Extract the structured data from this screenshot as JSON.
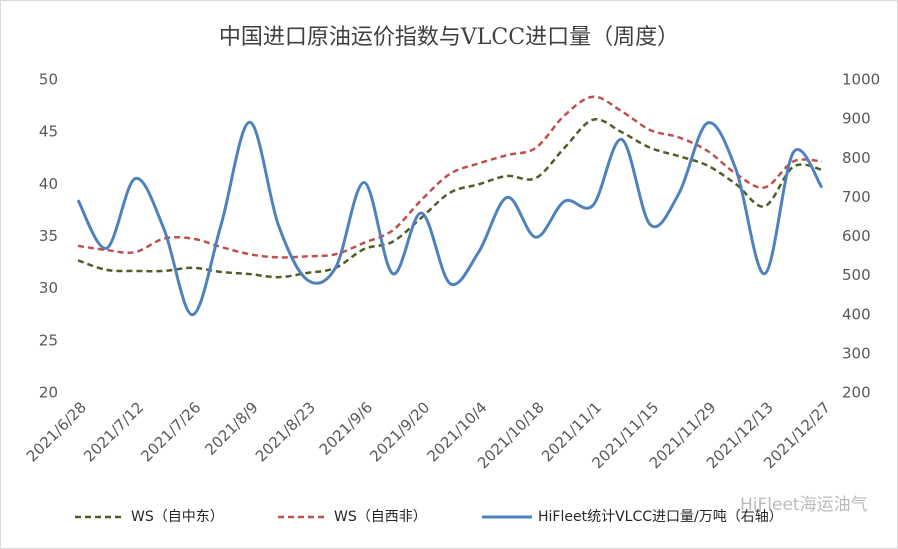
{
  "chart_data": {
    "type": "line",
    "title": "中国进口原油运价指数与VLCC进口量（周度）",
    "categories": [
      "2021/6/28",
      null,
      "2021/7/12",
      null,
      "2021/7/26",
      null,
      "2021/8/9",
      null,
      "2021/8/23",
      null,
      "2021/9/6",
      null,
      "2021/9/20",
      null,
      "2021/10/4",
      null,
      "2021/10/18",
      null,
      "2021/11/1",
      null,
      "2021/11/15",
      null,
      "2021/11/29",
      null,
      "2021/12/13",
      null,
      "2021/12/27"
    ],
    "series": [
      {
        "name": "WS（自中东）",
        "color": "#4e5f25",
        "style": "dashed",
        "axis": "y",
        "values": [
          32.7,
          31.8,
          31.7,
          31.7,
          32.0,
          31.6,
          31.4,
          31.1,
          31.5,
          32.0,
          33.8,
          34.5,
          36.8,
          39.2,
          40.0,
          40.8,
          40.6,
          43.5,
          46.2,
          45.0,
          43.5,
          42.7,
          41.8,
          40.0,
          37.9,
          41.7,
          41.4
        ]
      },
      {
        "name": "WS（自西非）",
        "color": "#c0504d",
        "style": "dashed",
        "axis": "y",
        "values": [
          34.1,
          33.7,
          33.5,
          34.8,
          34.8,
          34.0,
          33.3,
          33.0,
          33.1,
          33.3,
          34.4,
          35.6,
          38.5,
          41.0,
          42.0,
          42.8,
          43.5,
          46.6,
          48.4,
          47.0,
          45.2,
          44.5,
          43.2,
          41.0,
          39.7,
          42.2,
          42.2
        ]
      },
      {
        "name": "HiFleet统计VLCC进口量/万吨（右轴）",
        "color": "#4f81bd",
        "style": "solid",
        "axis": "y2",
        "values": [
          693,
          570,
          748,
          620,
          400,
          630,
          892,
          630,
          490,
          520,
          738,
          505,
          660,
          480,
          560,
          700,
          598,
          690,
          680,
          848,
          630,
          710,
          890,
          770,
          505,
          815,
          725
        ]
      }
    ],
    "ylim": [
      20,
      50
    ],
    "yticks": [
      20,
      25,
      30,
      35,
      40,
      45,
      50
    ],
    "y2lim": [
      200,
      1000
    ],
    "y2ticks": [
      200,
      300,
      400,
      500,
      600,
      700,
      800,
      900,
      1000
    ],
    "grid": false,
    "legend": "bottom",
    "watermark": "HiFleet海运油气"
  }
}
